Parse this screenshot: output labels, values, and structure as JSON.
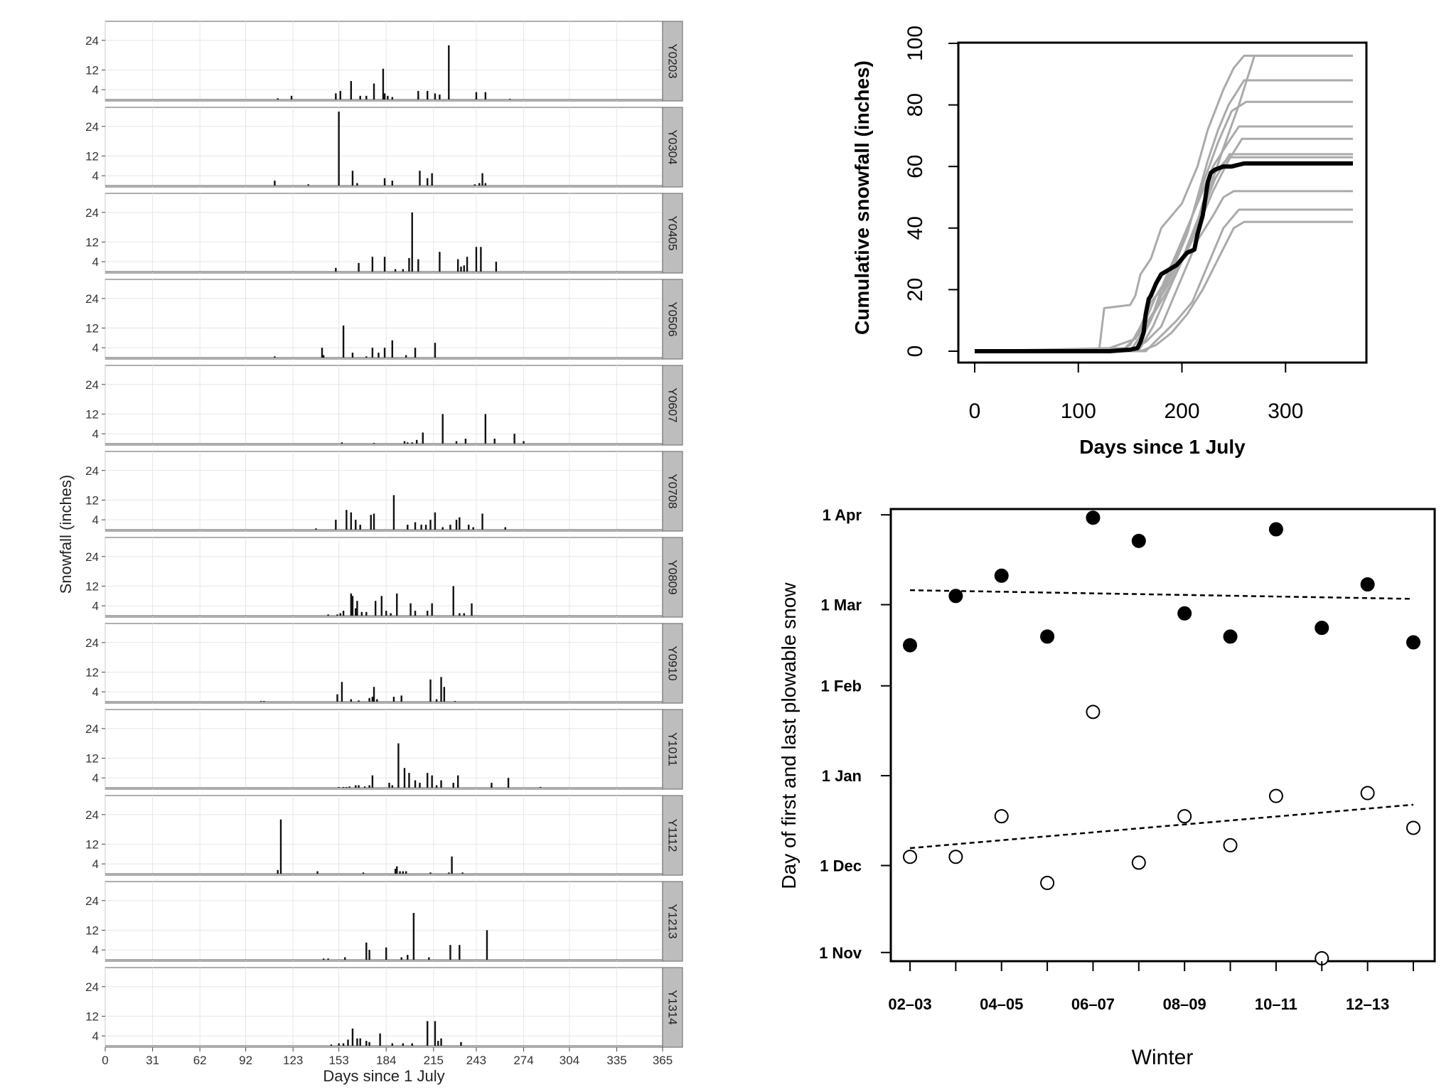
{
  "chart_data": [
    {
      "type": "bar",
      "xlabel": "Days since 1 July",
      "ylabel": "Snowfall (inches)",
      "x_ticks": [
        0,
        31,
        62,
        92,
        123,
        153,
        184,
        215,
        243,
        274,
        304,
        335,
        365
      ],
      "y_ticks": [
        4,
        12,
        24
      ],
      "xlim": [
        0,
        365
      ],
      "ylim": [
        0,
        30
      ],
      "grid": true,
      "facet_strip": "right",
      "panels": [
        {
          "name": "Y0203",
          "x": [
            113,
            122,
            151,
            154,
            161,
            167,
            171,
            176,
            182,
            183,
            185,
            188,
            205,
            211,
            216,
            219,
            225,
            243,
            249,
            265
          ],
          "values": [
            0.5,
            1.5,
            2.5,
            3.5,
            7.5,
            1.5,
            1.5,
            6.5,
            12.5,
            2.5,
            1.5,
            1,
            3.5,
            3.5,
            2.5,
            2,
            22,
            3,
            3,
            0.3
          ]
        },
        {
          "name": "Y0304",
          "x": [
            111,
            133,
            153,
            162,
            165,
            183,
            188,
            206,
            211,
            214,
            242,
            245,
            247,
            249
          ],
          "values": [
            2,
            0.5,
            30,
            6,
            1,
            3,
            2,
            6,
            3,
            5,
            0.5,
            1,
            5,
            1
          ]
        },
        {
          "name": "Y0405",
          "x": [
            151,
            166,
            175,
            183,
            190,
            195,
            199,
            201,
            205,
            219,
            231,
            233,
            235,
            237,
            243,
            246,
            256
          ],
          "values": [
            1.5,
            3.5,
            6,
            6,
            1,
            1,
            5.5,
            24,
            5,
            8,
            5,
            2,
            2.5,
            6,
            10,
            10,
            4
          ]
        },
        {
          "name": "Y0506",
          "x": [
            111,
            142,
            143,
            156,
            162,
            171,
            175,
            179,
            183,
            188,
            197,
            203,
            216
          ],
          "values": [
            0.5,
            4,
            1,
            13,
            2,
            0.5,
            4,
            2,
            4,
            7,
            1,
            4,
            6
          ]
        },
        {
          "name": "Y0607",
          "x": [
            155,
            176,
            196,
            198,
            201,
            204,
            208,
            221,
            230,
            236,
            249,
            255,
            268,
            274
          ],
          "values": [
            0.5,
            0.3,
            1,
            0.5,
            0.5,
            1.5,
            4.5,
            12,
            1,
            2,
            12,
            2,
            4,
            1
          ]
        },
        {
          "name": "Y0708",
          "x": [
            138,
            151,
            158,
            161,
            164,
            167,
            174,
            176,
            189,
            198,
            203,
            207,
            210,
            213,
            216,
            221,
            226,
            230,
            232,
            238,
            241,
            247,
            262
          ],
          "values": [
            0.5,
            4,
            8,
            7,
            4,
            2,
            6,
            6.5,
            14,
            2,
            3,
            2,
            2,
            4,
            7,
            1,
            2,
            4,
            5,
            2,
            1,
            6.5,
            1
          ]
        },
        {
          "name": "Y0809",
          "x": [
            146,
            152,
            154,
            156,
            161,
            162,
            164,
            165,
            168,
            171,
            177,
            181,
            184,
            187,
            191,
            200,
            203,
            211,
            214,
            228,
            232,
            235,
            240
          ],
          "values": [
            0.5,
            0.5,
            1,
            2,
            9,
            8,
            3,
            6,
            1.5,
            1.5,
            6,
            8,
            2,
            1,
            9,
            5,
            2,
            2,
            5,
            12,
            1,
            1,
            5
          ]
        },
        {
          "name": "Y0910",
          "x": [
            102,
            104,
            152,
            155,
            161,
            166,
            173,
            175,
            176,
            178,
            189,
            194,
            213,
            217,
            220,
            222,
            229
          ],
          "values": [
            0.3,
            0.3,
            3,
            8,
            1,
            0.5,
            1.5,
            2,
            6,
            1,
            2,
            2.5,
            9,
            1,
            10,
            6,
            0.3
          ]
        },
        {
          "name": "Y1011",
          "x": [
            153,
            156,
            158,
            160,
            164,
            166,
            170,
            173,
            175,
            186,
            188,
            192,
            196,
            199,
            203,
            206,
            211,
            214,
            217,
            220,
            228,
            231,
            253,
            264,
            285
          ],
          "values": [
            0.3,
            0.3,
            0.3,
            0.5,
            1,
            1,
            0.5,
            1,
            5,
            2,
            1,
            18,
            8,
            6,
            3,
            2,
            6,
            5,
            1,
            3,
            2,
            5,
            2,
            4,
            0.3
          ]
        },
        {
          "name": "Y1112",
          "x": [
            113,
            115,
            139,
            169,
            190,
            191,
            193,
            195,
            197,
            213,
            225,
            227,
            234
          ],
          "values": [
            1.5,
            22,
            1,
            0.5,
            2,
            3,
            1,
            1,
            1,
            0.5,
            0.5,
            7,
            0.5
          ]
        },
        {
          "name": "Y1213",
          "x": [
            143,
            146,
            157,
            171,
            173,
            184,
            194,
            198,
            202,
            212,
            226,
            232,
            250
          ],
          "values": [
            0.5,
            0.5,
            1,
            7,
            4,
            5,
            1,
            2,
            19,
            1,
            6,
            6,
            12
          ]
        },
        {
          "name": "Y1314",
          "x": [
            148,
            153,
            156,
            159,
            162,
            165,
            167,
            171,
            173,
            180,
            188,
            195,
            201,
            211,
            216,
            218,
            220,
            233
          ],
          "values": [
            0.5,
            1,
            1,
            2.5,
            7,
            3,
            3,
            2,
            1.5,
            5,
            1,
            1,
            1,
            10,
            10,
            2,
            3,
            1.5
          ]
        }
      ]
    },
    {
      "type": "line",
      "xlabel": "Days since 1 July",
      "ylabel": "Cumulative snowfall (inches)",
      "x_ticks": [
        0,
        100,
        200,
        300
      ],
      "y_ticks": [
        0,
        20,
        40,
        60,
        80,
        100
      ],
      "xlim": [
        0,
        365
      ],
      "ylim": [
        0,
        100
      ],
      "highlight_color": "#000000",
      "other_color": "#aaaaaa",
      "series": [
        {
          "highlight": true,
          "x": [
            0,
            130,
            150,
            157,
            160,
            163,
            165,
            168,
            170,
            175,
            180,
            185,
            190,
            195,
            200,
            205,
            212,
            215,
            220,
            225,
            228,
            232,
            240,
            248,
            260,
            300,
            365
          ],
          "values": [
            0,
            0,
            0.5,
            1,
            3,
            6,
            12,
            17,
            18,
            22,
            25,
            26,
            27,
            28,
            30,
            32,
            33,
            38,
            44,
            55,
            58,
            59,
            60,
            60,
            61,
            61,
            61
          ]
        },
        {
          "x": [
            0,
            120,
            125,
            150,
            155,
            160,
            170,
            180,
            200,
            215,
            225,
            240,
            250,
            260,
            365
          ],
          "values": [
            0,
            0,
            14,
            15,
            18,
            25,
            30,
            40,
            48,
            60,
            72,
            85,
            92,
            96,
            96
          ]
        },
        {
          "x": [
            0,
            140,
            150,
            160,
            170,
            185,
            195,
            205,
            215,
            225,
            235,
            245,
            260,
            365
          ],
          "values": [
            0,
            0,
            2,
            8,
            16,
            22,
            30,
            38,
            50,
            62,
            72,
            80,
            88,
            88
          ]
        },
        {
          "x": [
            0,
            130,
            155,
            165,
            175,
            190,
            200,
            210,
            220,
            230,
            245,
            255,
            365
          ],
          "values": [
            0,
            1,
            4,
            10,
            18,
            26,
            35,
            44,
            52,
            60,
            68,
            73,
            73
          ]
        },
        {
          "x": [
            0,
            150,
            160,
            170,
            180,
            195,
            210,
            220,
            232,
            245,
            365
          ],
          "values": [
            0,
            0,
            5,
            10,
            18,
            26,
            36,
            48,
            58,
            63,
            63
          ]
        },
        {
          "x": [
            0,
            150,
            165,
            180,
            190,
            200,
            215,
            230,
            240,
            250,
            365
          ],
          "values": [
            0,
            0,
            3,
            8,
            16,
            24,
            36,
            44,
            50,
            52,
            52
          ]
        },
        {
          "x": [
            0,
            160,
            175,
            190,
            205,
            220,
            235,
            250,
            260,
            365
          ],
          "values": [
            0,
            0,
            2,
            6,
            12,
            20,
            30,
            40,
            42,
            42
          ]
        },
        {
          "x": [
            0,
            165,
            180,
            195,
            210,
            225,
            240,
            255,
            365
          ],
          "values": [
            0,
            0,
            5,
            10,
            16,
            28,
            40,
            46,
            46
          ]
        },
        {
          "x": [
            0,
            145,
            160,
            175,
            185,
            200,
            215,
            230,
            245,
            258,
            365
          ],
          "values": [
            0,
            1,
            6,
            14,
            22,
            30,
            40,
            52,
            62,
            69,
            69
          ]
        },
        {
          "x": [
            0,
            155,
            170,
            182,
            195,
            210,
            222,
            235,
            248,
            262,
            365
          ],
          "values": [
            0,
            0,
            10,
            22,
            32,
            44,
            56,
            68,
            78,
            81,
            81
          ]
        },
        {
          "x": [
            0,
            158,
            172,
            185,
            198,
            212,
            226,
            240,
            255,
            270,
            365
          ],
          "values": [
            0,
            0,
            8,
            18,
            28,
            40,
            52,
            66,
            80,
            96,
            96
          ]
        },
        {
          "x": [
            0,
            150,
            162,
            176,
            190,
            204,
            218,
            232,
            246,
            365
          ],
          "values": [
            0,
            0,
            6,
            14,
            22,
            32,
            44,
            56,
            64,
            64
          ]
        }
      ]
    },
    {
      "type": "scatter",
      "xlabel": "Winter",
      "ylabel": "Day of first and last plowable snow",
      "x_tick_labels": [
        "02–03",
        "04–05",
        "06–07",
        "08–09",
        "10–11",
        "12–13"
      ],
      "winters": [
        "02–03",
        "03–04",
        "04–05",
        "05–06",
        "06–07",
        "07–08",
        "08–09",
        "09–10",
        "10–11",
        "11–12",
        "12–13",
        "13–14"
      ],
      "y_tick_labels": [
        "1 Nov",
        "1 Dec",
        "1 Jan",
        "1 Feb",
        "1 Mar",
        "1 Apr"
      ],
      "y_tick_values": [
        123,
        153,
        184,
        215,
        243,
        274
      ],
      "ylim": [
        120,
        276
      ],
      "series": [
        {
          "marker": "filled",
          "values": [
            229,
            246,
            253,
            232,
            273,
            265,
            240,
            232,
            269,
            235,
            250,
            230
          ]
        },
        {
          "marker": "open",
          "values": [
            156,
            156,
            170,
            147,
            206,
            154,
            170,
            160,
            177,
            121,
            178,
            166
          ]
        }
      ],
      "trend_lines": [
        {
          "x": [
            0,
            11
          ],
          "values": [
            248,
            245
          ]
        },
        {
          "x": [
            0,
            11
          ],
          "values": [
            159,
            174
          ]
        }
      ]
    }
  ]
}
